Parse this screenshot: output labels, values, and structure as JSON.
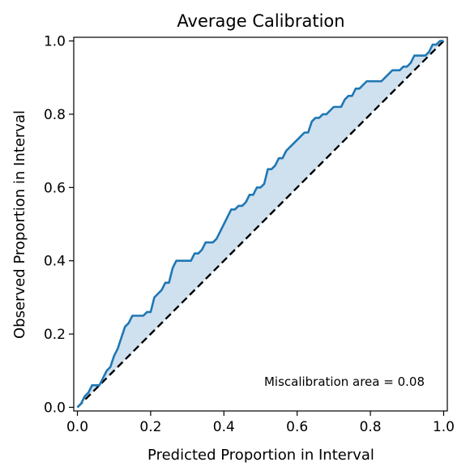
{
  "chart_data": {
    "type": "line",
    "title": "Average Calibration",
    "xlabel": "Predicted Proportion in Interval",
    "ylabel": "Observed Proportion in Interval",
    "xlim": [
      -0.01,
      1.01
    ],
    "ylim": [
      -0.01,
      1.01
    ],
    "xticks": [
      "0.0",
      "0.2",
      "0.4",
      "0.6",
      "0.8",
      "1.0"
    ],
    "yticks": [
      "0.0",
      "0.2",
      "0.4",
      "0.6",
      "0.8",
      "1.0"
    ],
    "annotation": "Miscalibration area = 0.08",
    "grid": false,
    "colors": {
      "curve": "#1f77b4",
      "fill": "#cfe0ef",
      "ideal": "#000000"
    },
    "series": [
      {
        "x": [
          0.0,
          0.01,
          0.02,
          0.03,
          0.04,
          0.05,
          0.06,
          0.07,
          0.08,
          0.09,
          0.1,
          0.11,
          0.12,
          0.13,
          0.14,
          0.15,
          0.16,
          0.17,
          0.18,
          0.19,
          0.2,
          0.21,
          0.22,
          0.23,
          0.24,
          0.25,
          0.26,
          0.27,
          0.28,
          0.29,
          0.3,
          0.31,
          0.32,
          0.33,
          0.34,
          0.35,
          0.36,
          0.37,
          0.38,
          0.39,
          0.4,
          0.41,
          0.42,
          0.43,
          0.44,
          0.45,
          0.46,
          0.47,
          0.48,
          0.49,
          0.5,
          0.51,
          0.52,
          0.53,
          0.54,
          0.55,
          0.56,
          0.57,
          0.58,
          0.59,
          0.6,
          0.61,
          0.62,
          0.63,
          0.64,
          0.65,
          0.66,
          0.67,
          0.68,
          0.69,
          0.7,
          0.71,
          0.72,
          0.73,
          0.74,
          0.75,
          0.76,
          0.77,
          0.78,
          0.79,
          0.8,
          0.81,
          0.82,
          0.83,
          0.84,
          0.85,
          0.86,
          0.87,
          0.88,
          0.89,
          0.9,
          0.91,
          0.92,
          0.93,
          0.94,
          0.95,
          0.96,
          0.97,
          0.98,
          0.99,
          1.0
        ],
        "y": [
          0.0,
          0.01,
          0.03,
          0.04,
          0.06,
          0.06,
          0.06,
          0.08,
          0.1,
          0.11,
          0.14,
          0.16,
          0.19,
          0.22,
          0.23,
          0.25,
          0.25,
          0.25,
          0.25,
          0.26,
          0.26,
          0.3,
          0.31,
          0.32,
          0.34,
          0.34,
          0.38,
          0.4,
          0.4,
          0.4,
          0.4,
          0.4,
          0.42,
          0.42,
          0.43,
          0.45,
          0.45,
          0.45,
          0.46,
          0.48,
          0.5,
          0.52,
          0.54,
          0.54,
          0.55,
          0.55,
          0.56,
          0.58,
          0.58,
          0.6,
          0.6,
          0.61,
          0.65,
          0.65,
          0.66,
          0.68,
          0.68,
          0.7,
          0.71,
          0.72,
          0.73,
          0.74,
          0.75,
          0.75,
          0.78,
          0.79,
          0.79,
          0.8,
          0.8,
          0.81,
          0.82,
          0.82,
          0.82,
          0.84,
          0.85,
          0.85,
          0.87,
          0.87,
          0.88,
          0.89,
          0.89,
          0.89,
          0.89,
          0.89,
          0.9,
          0.91,
          0.92,
          0.92,
          0.92,
          0.93,
          0.93,
          0.94,
          0.96,
          0.96,
          0.96,
          0.96,
          0.97,
          0.99,
          0.99,
          1.0,
          1.0
        ]
      }
    ]
  }
}
